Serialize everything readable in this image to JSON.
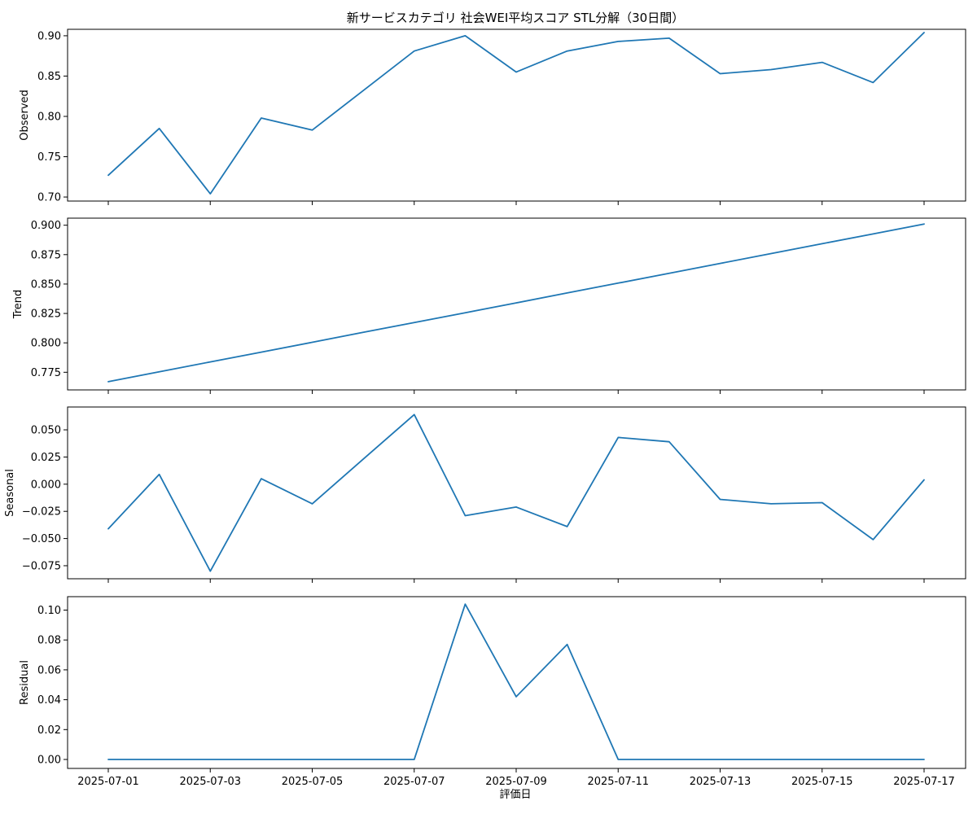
{
  "title": "新サービスカテゴリ 社会WEI平均スコア STL分解（30日間）",
  "colors": {
    "line": "#1f77b4",
    "axis": "#000000",
    "background": "#ffffff"
  },
  "chart_data": {
    "type": "line",
    "title": "新サービスカテゴリ 社会WEI平均スコア STL分解（30日間）",
    "xlabel": "評価日",
    "x": [
      "2025-07-01",
      "2025-07-02",
      "2025-07-03",
      "2025-07-04",
      "2025-07-05",
      "2025-07-06",
      "2025-07-07",
      "2025-07-08",
      "2025-07-09",
      "2025-07-10",
      "2025-07-11",
      "2025-07-12",
      "2025-07-13",
      "2025-07-14",
      "2025-07-15",
      "2025-07-16",
      "2025-07-17"
    ],
    "xticks": [
      "2025-07-01",
      "2025-07-03",
      "2025-07-05",
      "2025-07-07",
      "2025-07-09",
      "2025-07-11",
      "2025-07-13",
      "2025-07-15",
      "2025-07-17"
    ],
    "grid": false,
    "panels": [
      {
        "ylabel": "Observed",
        "ylim": [
          0.695,
          0.908
        ],
        "yticks": [
          "0.70",
          "0.75",
          "0.80",
          "0.85",
          "0.90"
        ],
        "values": [
          0.727,
          0.785,
          0.704,
          0.798,
          0.783,
          0.832,
          0.881,
          0.9,
          0.855,
          0.881,
          0.893,
          0.897,
          0.853,
          0.858,
          0.867,
          0.842,
          0.904
        ]
      },
      {
        "ylabel": "Trend",
        "ylim": [
          0.76,
          0.906
        ],
        "yticks": [
          "0.775",
          "0.800",
          "0.825",
          "0.850",
          "0.875",
          "0.900"
        ],
        "values": [
          0.767,
          0.7754,
          0.7838,
          0.7921,
          0.8005,
          0.8089,
          0.8173,
          0.8256,
          0.834,
          0.8424,
          0.8508,
          0.8591,
          0.8675,
          0.8759,
          0.8843,
          0.8926,
          0.901
        ]
      },
      {
        "ylabel": "Seasonal",
        "ylim": [
          -0.087,
          0.071
        ],
        "yticks": [
          "−0.075",
          "−0.050",
          "−0.025",
          "0.000",
          "0.025",
          "0.050"
        ],
        "values": [
          -0.041,
          0.009,
          -0.08,
          0.005,
          -0.018,
          0.023,
          0.064,
          -0.029,
          -0.021,
          -0.039,
          0.043,
          0.039,
          -0.014,
          -0.018,
          -0.017,
          -0.051,
          0.004
        ]
      },
      {
        "ylabel": "Residual",
        "ylim": [
          -0.006,
          0.109
        ],
        "yticks": [
          "0.00",
          "0.02",
          "0.04",
          "0.06",
          "0.08",
          "0.10"
        ],
        "values": [
          0,
          0,
          0,
          0,
          0,
          0,
          0,
          0.104,
          0.042,
          0.077,
          0,
          0,
          0,
          0,
          0,
          0,
          0
        ]
      }
    ]
  }
}
